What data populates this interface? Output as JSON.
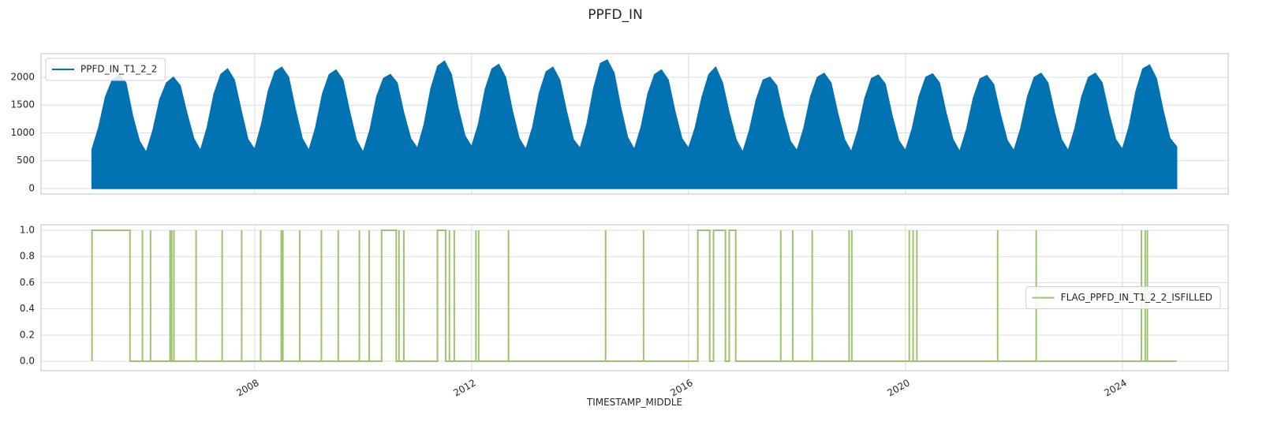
{
  "title": "PPFD_IN",
  "chart_data": [
    {
      "type": "area",
      "xlim": [
        2004.06,
        2025.95
      ],
      "xticks": [
        2008,
        2012,
        2016,
        2020,
        2024
      ],
      "show_xticklabels": false,
      "ylim": [
        -100,
        2425
      ],
      "yticks": [
        0,
        500,
        1000,
        1500,
        2000
      ],
      "grid": true,
      "legend": "upper left",
      "series": [
        {
          "name": "PPFD_IN_T1_2_2",
          "color": "#0173b2",
          "x": [
            2005,
            2005.125,
            2005.25,
            2005.375,
            2005.5,
            2005.625,
            2005.75,
            2005.875,
            2006,
            2006.125,
            2006.25,
            2006.375,
            2006.5,
            2006.625,
            2006.75,
            2006.875,
            2007,
            2007.125,
            2007.25,
            2007.375,
            2007.5,
            2007.625,
            2007.75,
            2007.875,
            2008,
            2008.125,
            2008.25,
            2008.375,
            2008.5,
            2008.625,
            2008.75,
            2008.875,
            2009,
            2009.125,
            2009.25,
            2009.375,
            2009.5,
            2009.625,
            2009.75,
            2009.875,
            2010,
            2010.125,
            2010.25,
            2010.375,
            2010.5,
            2010.625,
            2010.75,
            2010.875,
            2011,
            2011.125,
            2011.25,
            2011.375,
            2011.5,
            2011.625,
            2011.75,
            2011.875,
            2012,
            2012.125,
            2012.25,
            2012.375,
            2012.5,
            2012.625,
            2012.75,
            2012.875,
            2013,
            2013.125,
            2013.25,
            2013.375,
            2013.5,
            2013.625,
            2013.75,
            2013.875,
            2014,
            2014.125,
            2014.25,
            2014.375,
            2014.5,
            2014.625,
            2014.75,
            2014.875,
            2015,
            2015.125,
            2015.25,
            2015.375,
            2015.5,
            2015.625,
            2015.75,
            2015.875,
            2016,
            2016.125,
            2016.25,
            2016.375,
            2016.5,
            2016.625,
            2016.75,
            2016.875,
            2017,
            2017.125,
            2017.25,
            2017.375,
            2017.5,
            2017.625,
            2017.75,
            2017.875,
            2018,
            2018.125,
            2018.25,
            2018.375,
            2018.5,
            2018.625,
            2018.75,
            2018.875,
            2019,
            2019.125,
            2019.25,
            2019.375,
            2019.5,
            2019.625,
            2019.75,
            2019.875,
            2020,
            2020.125,
            2020.25,
            2020.375,
            2020.5,
            2020.625,
            2020.75,
            2020.875,
            2021,
            2021.125,
            2021.25,
            2021.375,
            2021.5,
            2021.625,
            2021.75,
            2021.875,
            2022,
            2022.125,
            2022.25,
            2022.375,
            2022.5,
            2022.625,
            2022.75,
            2022.875,
            2023,
            2023.125,
            2023.25,
            2023.375,
            2023.5,
            2023.625,
            2023.75,
            2023.875,
            2024,
            2024.125,
            2024.25,
            2024.375,
            2024.5,
            2024.625,
            2024.75,
            2024.875,
            2025
          ],
          "values": [
            700,
            1100,
            1650,
            1950,
            2050,
            1900,
            1300,
            850,
            650,
            1050,
            1600,
            1900,
            2000,
            1850,
            1350,
            900,
            680,
            1100,
            1700,
            2050,
            2150,
            1950,
            1400,
            880,
            700,
            1150,
            1750,
            2100,
            2180,
            2000,
            1420,
            900,
            680,
            1100,
            1700,
            2050,
            2130,
            1950,
            1380,
            870,
            650,
            1050,
            1650,
            1980,
            2050,
            1900,
            1350,
            900,
            720,
            1150,
            1800,
            2200,
            2290,
            2050,
            1450,
            950,
            750,
            1150,
            1780,
            2150,
            2230,
            2000,
            1400,
            900,
            700,
            1100,
            1720,
            2100,
            2180,
            1950,
            1380,
            880,
            720,
            1150,
            1800,
            2250,
            2310,
            2080,
            1450,
            920,
            700,
            1100,
            1700,
            2050,
            2130,
            1950,
            1380,
            900,
            720,
            1100,
            1650,
            2050,
            2180,
            1900,
            1350,
            880,
            650,
            1050,
            1600,
            1950,
            2000,
            1850,
            1300,
            850,
            680,
            1080,
            1650,
            2000,
            2070,
            1900,
            1350,
            880,
            660,
            1050,
            1620,
            1980,
            2040,
            1880,
            1320,
            860,
            680,
            1080,
            1650,
            2000,
            2060,
            1900,
            1350,
            880,
            660,
            1060,
            1620,
            1970,
            2030,
            1870,
            1330,
            860,
            680,
            1080,
            1650,
            2000,
            2070,
            1900,
            1350,
            880,
            680,
            1080,
            1650,
            2000,
            2070,
            1900,
            1350,
            880,
            700,
            1120,
            1750,
            2150,
            2220,
            1980,
            1400,
            900,
            750
          ]
        }
      ]
    },
    {
      "type": "line",
      "xlim": [
        2004.06,
        2025.95
      ],
      "xticks": [
        2008,
        2012,
        2016,
        2020,
        2024
      ],
      "show_xticklabels": true,
      "xlabel": "TIMESTAMP_MIDDLE",
      "ylim": [
        -0.072,
        1.042
      ],
      "yticks": [
        {
          "value": 0,
          "label": "0.0"
        },
        0.2,
        0.4,
        0.6,
        0.8,
        {
          "value": 1,
          "label": "1.0"
        }
      ],
      "grid": true,
      "legend": "center right",
      "series": [
        {
          "name": "FLAG_PPFD_IN_T1_2_2_ISFILLED",
          "color": "#9cc46f",
          "x": [
            2005,
            2005,
            2005.7,
            2005.7,
            2005.93,
            2005.93,
            2005.93,
            2006.08,
            2006.08,
            2006.08,
            2006.44,
            2006.44,
            2006.44,
            2006.47,
            2006.47,
            2006.47,
            2006.51,
            2006.51,
            2006.51,
            2006.92,
            2006.92,
            2006.92,
            2007.4,
            2007.4,
            2007.4,
            2007.76,
            2007.76,
            2007.76,
            2008.11,
            2008.11,
            2008.11,
            2008.49,
            2008.49,
            2008.49,
            2008.52,
            2008.52,
            2008.52,
            2008.83,
            2008.83,
            2008.83,
            2009.23,
            2009.23,
            2009.23,
            2009.54,
            2009.54,
            2009.54,
            2009.93,
            2009.93,
            2009.93,
            2010.11,
            2010.11,
            2010.11,
            2010.34,
            2010.34,
            2010.61,
            2010.61,
            2010.66,
            2010.66,
            2010.66,
            2010.75,
            2010.75,
            2010.75,
            2011.37,
            2011.37,
            2011.52,
            2011.52,
            2011.59,
            2011.59,
            2011.59,
            2011.68,
            2011.68,
            2011.68,
            2012.08,
            2012.08,
            2012.08,
            2012.13,
            2012.13,
            2012.13,
            2012.68,
            2012.68,
            2012.68,
            2014.47,
            2014.47,
            2014.47,
            2015.17,
            2015.17,
            2015.17,
            2016.17,
            2016.17,
            2016.39,
            2016.39,
            2016.46,
            2016.46,
            2016.68,
            2016.68,
            2016.75,
            2016.75,
            2016.87,
            2016.87,
            2017.7,
            2017.7,
            2017.7,
            2017.92,
            2017.92,
            2017.92,
            2018.28,
            2018.28,
            2018.28,
            2018.96,
            2018.96,
            2018.96,
            2019.01,
            2019.01,
            2019.01,
            2020.07,
            2020.07,
            2020.07,
            2020.14,
            2020.14,
            2020.14,
            2020.21,
            2020.21,
            2020.21,
            2021.7,
            2021.7,
            2021.7,
            2022.41,
            2022.41,
            2022.41,
            2024.35,
            2024.35,
            2024.35,
            2024.42,
            2024.42,
            2024.42,
            2024.46,
            2024.46,
            2024.46,
            2025
          ],
          "values": [
            0,
            1,
            1,
            0,
            0,
            1,
            0,
            0,
            1,
            0,
            0,
            1,
            0,
            0,
            1,
            0,
            0,
            1,
            0,
            0,
            1,
            0,
            0,
            1,
            0,
            0,
            1,
            0,
            0,
            1,
            0,
            0,
            1,
            0,
            0,
            1,
            0,
            0,
            1,
            0,
            0,
            1,
            0,
            0,
            1,
            0,
            0,
            1,
            0,
            0,
            1,
            0,
            0,
            1,
            1,
            0,
            0,
            1,
            0,
            0,
            1,
            0,
            0,
            1,
            1,
            0,
            0,
            1,
            0,
            0,
            1,
            0,
            0,
            1,
            0,
            0,
            1,
            0,
            0,
            1,
            0,
            0,
            1,
            0,
            0,
            1,
            0,
            0,
            1,
            1,
            0,
            0,
            1,
            1,
            0,
            0,
            1,
            1,
            0,
            0,
            1,
            0,
            0,
            1,
            0,
            0,
            1,
            0,
            0,
            1,
            0,
            0,
            1,
            0,
            0,
            1,
            0,
            0,
            1,
            0,
            0,
            1,
            0,
            0,
            1,
            0,
            0,
            1,
            0,
            0,
            1,
            0,
            0,
            1,
            0,
            0,
            1,
            0,
            0
          ]
        }
      ]
    }
  ]
}
